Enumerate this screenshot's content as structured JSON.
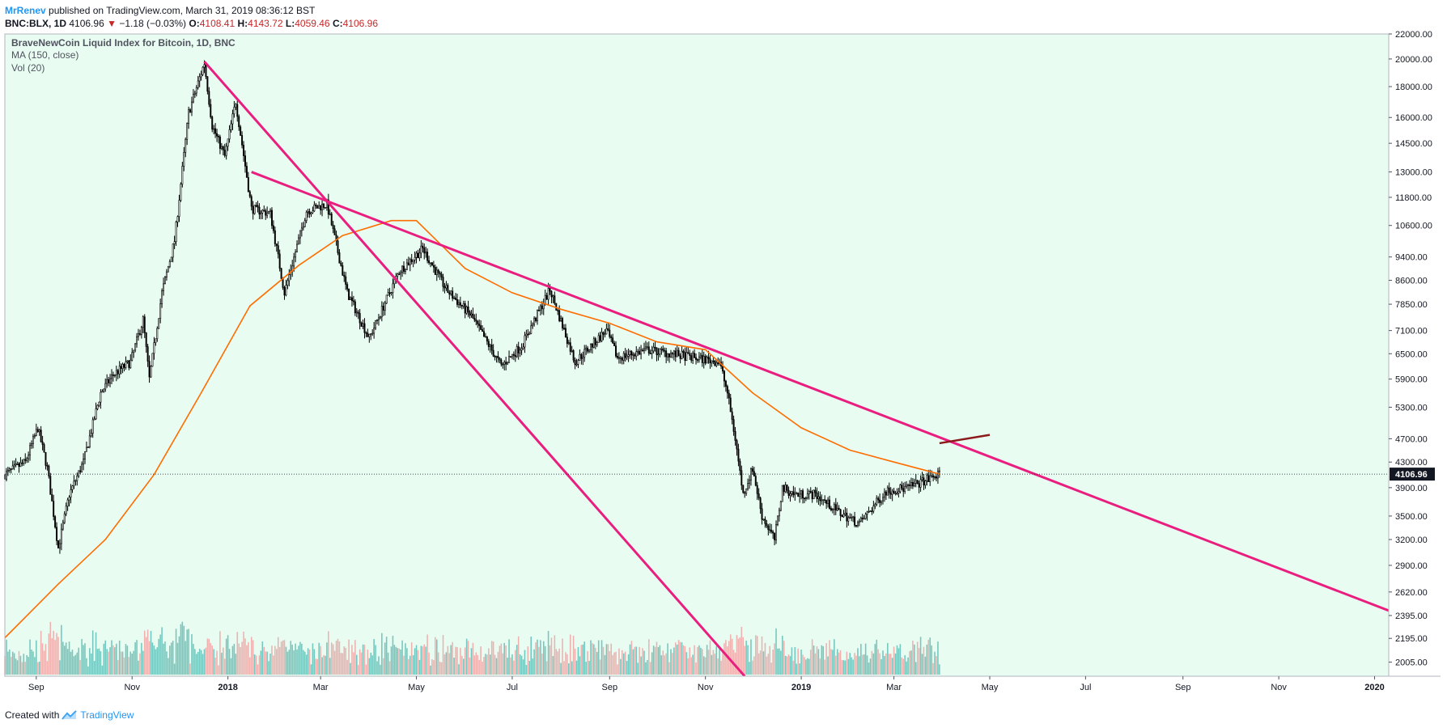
{
  "header": {
    "author": "MrRenev",
    "published_text": "published on TradingView.com, March 31, 2019 08:36:12 BST"
  },
  "quote": {
    "symbol": "BNC:BLX, 1D",
    "last": "4106.96",
    "change": "−1.18 (−0.03%)",
    "open_label": "O:",
    "open": "4108.41",
    "high_label": "H:",
    "high": "4143.72",
    "low_label": "L:",
    "low": "4059.46",
    "close_label": "C:",
    "close": "4106.96"
  },
  "footer": {
    "created_with": "Created with",
    "brand": "TradingView"
  },
  "colors": {
    "background": "#e8fcf2",
    "candles": "#000000",
    "ma": "#ff6d00",
    "trendline": "#e91e7f",
    "short_line": "#8b1a1a",
    "volume_up": "#4db6ac",
    "volume_down": "#ef9a9a",
    "price_tag_bg": "#131722"
  },
  "chart_data": {
    "type": "line",
    "title": "BraveNewCoin Liquid Index for Bitcoin, 1D, BNC",
    "indicators": [
      "MA (150, close)",
      "Vol (20)"
    ],
    "y_scale": "log",
    "ylim": [
      1900,
      22000
    ],
    "y_ticks": [
      "22000.00",
      "20000.00",
      "18000.00",
      "16000.00",
      "14500.00",
      "13000.00",
      "11800.00",
      "10600.00",
      "9400.00",
      "8600.00",
      "7850.00",
      "7100.00",
      "6500.00",
      "5900.00",
      "5300.00",
      "4700.00",
      "4300.00",
      "3900.00",
      "3500.00",
      "3200.00",
      "2900.00",
      "2620.00",
      "2395.00",
      "2195.00",
      "2005.00"
    ],
    "x_ticks": [
      {
        "label": "Sep",
        "date": "2017-09-01"
      },
      {
        "label": "Nov",
        "date": "2017-11-01"
      },
      {
        "label": "2018",
        "date": "2018-01-01",
        "bold": true
      },
      {
        "label": "Mar",
        "date": "2018-03-01"
      },
      {
        "label": "May",
        "date": "2018-05-01"
      },
      {
        "label": "Jul",
        "date": "2018-07-01"
      },
      {
        "label": "Sep",
        "date": "2018-09-01"
      },
      {
        "label": "Nov",
        "date": "2018-11-01"
      },
      {
        "label": "2019",
        "date": "2019-01-01",
        "bold": true
      },
      {
        "label": "Mar",
        "date": "2019-03-01"
      },
      {
        "label": "May",
        "date": "2019-05-01"
      },
      {
        "label": "Jul",
        "date": "2019-07-01"
      },
      {
        "label": "Sep",
        "date": "2019-09-01"
      },
      {
        "label": "Nov",
        "date": "2019-11-01"
      },
      {
        "label": "2020",
        "date": "2020-01-01",
        "bold": true
      }
    ],
    "xlim": [
      "2017-08-12",
      "2020-01-10"
    ],
    "last_price_label": "4106.96",
    "last_price": 4106.96,
    "series": [
      {
        "kind": "price",
        "x": [
          "2017-08-12",
          "2017-08-25",
          "2017-09-02",
          "2017-09-08",
          "2017-09-15",
          "2017-09-22",
          "2017-10-01",
          "2017-10-12",
          "2017-10-20",
          "2017-10-31",
          "2017-11-08",
          "2017-11-12",
          "2017-11-20",
          "2017-11-28",
          "2017-12-07",
          "2017-12-17",
          "2017-12-22",
          "2017-12-30",
          "2018-01-06",
          "2018-01-16",
          "2018-01-28",
          "2018-02-06",
          "2018-02-20",
          "2018-03-05",
          "2018-03-18",
          "2018-04-01",
          "2018-04-12",
          "2018-04-20",
          "2018-05-05",
          "2018-05-20",
          "2018-06-05",
          "2018-06-24",
          "2018-07-07",
          "2018-07-25",
          "2018-08-10",
          "2018-08-30",
          "2018-09-06",
          "2018-09-25",
          "2018-10-10",
          "2018-10-25",
          "2018-11-10",
          "2018-11-15",
          "2018-11-20",
          "2018-11-25",
          "2018-12-01",
          "2018-12-07",
          "2018-12-15",
          "2018-12-20",
          "2018-12-28",
          "2019-01-10",
          "2019-01-25",
          "2019-02-07",
          "2019-02-24",
          "2019-03-10",
          "2019-03-20",
          "2019-03-30"
        ],
        "y": [
          4100,
          4300,
          4900,
          4200,
          3100,
          3800,
          4300,
          5600,
          6000,
          6300,
          7400,
          5900,
          8200,
          10000,
          16300,
          19700,
          15500,
          13800,
          17000,
          11300,
          11100,
          8200,
          11200,
          11500,
          8200,
          6900,
          8000,
          8900,
          9700,
          8300,
          7500,
          6200,
          6700,
          8300,
          6300,
          7100,
          6400,
          6600,
          6500,
          6400,
          6300,
          5600,
          4700,
          3800,
          4200,
          3500,
          3200,
          3900,
          3800,
          3800,
          3550,
          3400,
          3850,
          3900,
          4000,
          4107
        ]
      },
      {
        "kind": "ma",
        "name": "MA (150, close)",
        "x": [
          "2017-08-12",
          "2017-09-15",
          "2017-10-15",
          "2017-11-15",
          "2017-12-15",
          "2018-01-15",
          "2018-02-15",
          "2018-03-15",
          "2018-04-15",
          "2018-05-01",
          "2018-06-01",
          "2018-07-01",
          "2018-08-01",
          "2018-09-01",
          "2018-10-01",
          "2018-11-01",
          "2018-12-01",
          "2019-01-01",
          "2019-02-01",
          "2019-03-01",
          "2019-03-30"
        ],
        "y": [
          2200,
          2700,
          3200,
          4100,
          5600,
          7800,
          9100,
          10200,
          10800,
          10800,
          9000,
          8200,
          7700,
          7300,
          6800,
          6600,
          5600,
          4900,
          4500,
          4300,
          4107
        ]
      }
    ],
    "volume": {
      "note": "Vol (20) histogram",
      "ylim": [
        0,
        1
      ]
    },
    "drawings": [
      {
        "name": "steep-trendline",
        "from": [
          "2017-12-17",
          19800
        ],
        "to": [
          "2018-11-26",
          1900
        ]
      },
      {
        "name": "long-trendline",
        "from": [
          "2018-01-16",
          13000
        ],
        "to": [
          "2020-01-10",
          2440
        ]
      },
      {
        "name": "short-resistance",
        "from": [
          "2019-03-30",
          4620
        ],
        "to": [
          "2019-05-01",
          4770
        ]
      }
    ]
  }
}
